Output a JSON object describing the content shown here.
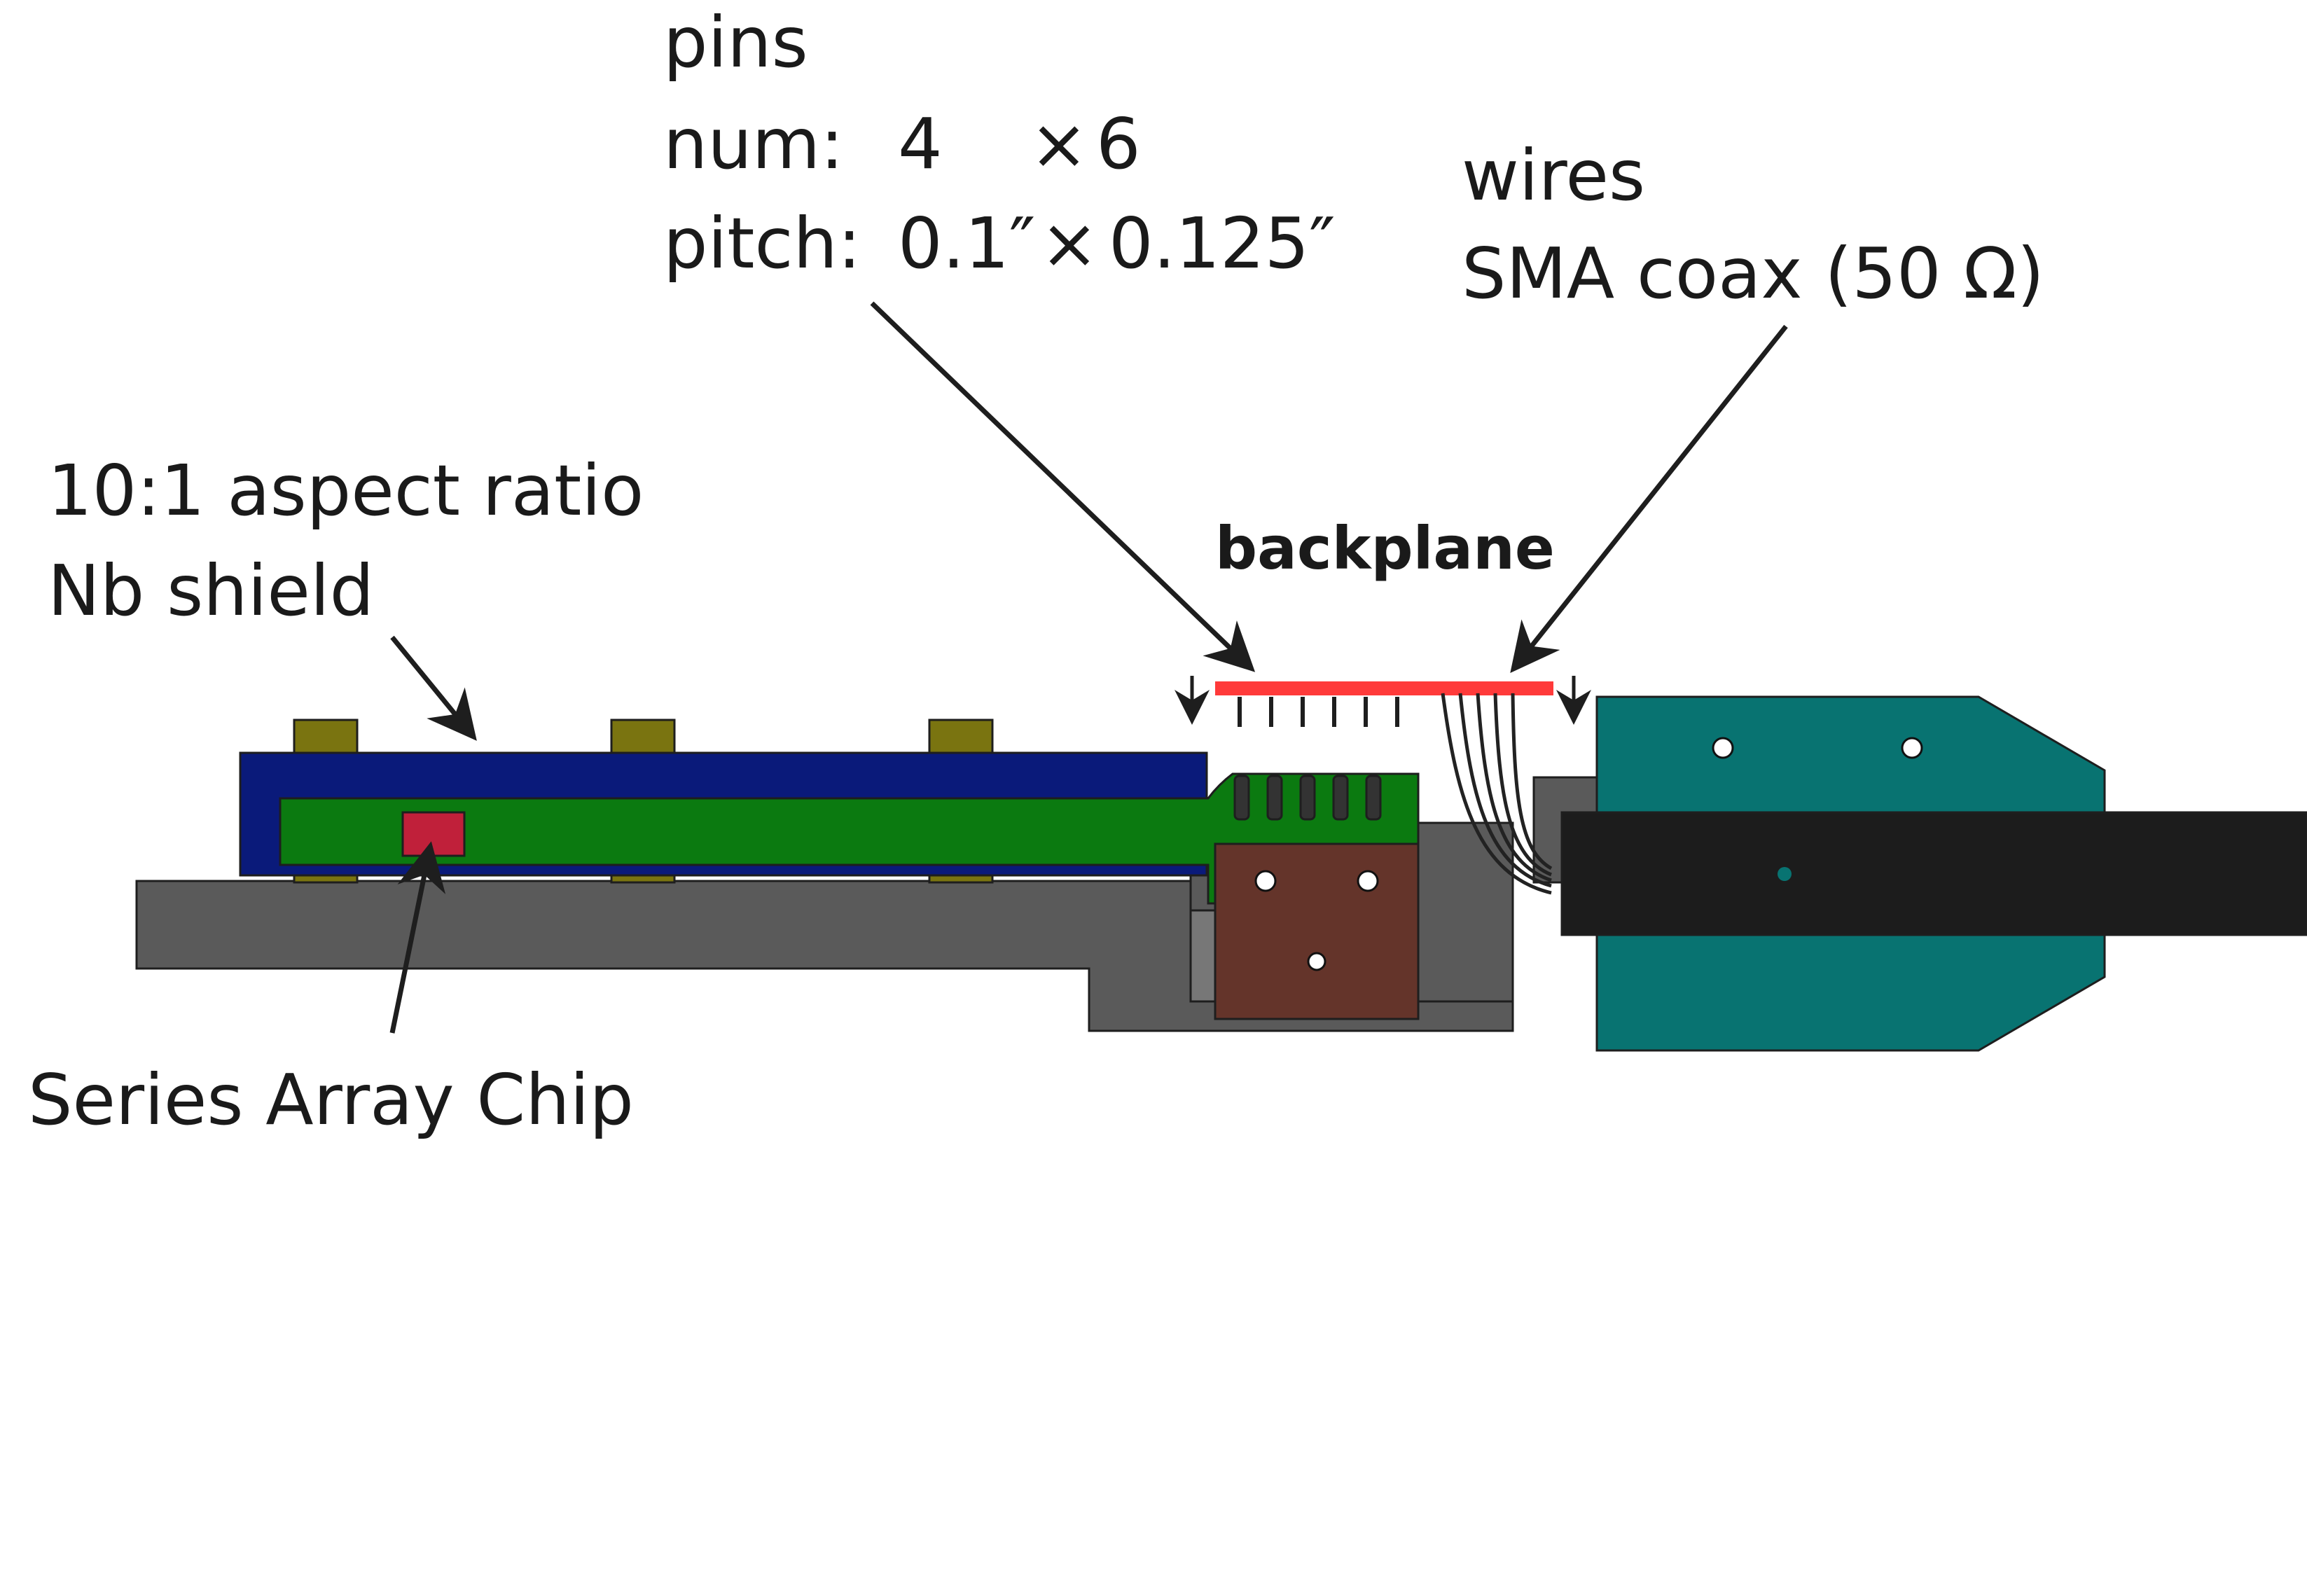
{
  "labels": {
    "pins_title": "pins",
    "pins_num_label": "num:",
    "pins_num_a": "4",
    "pins_num_times": "×",
    "pins_num_b": "6",
    "pins_pitch_label": "pitch:",
    "pins_pitch_a": "0.1″",
    "pins_pitch_times": "×",
    "pins_pitch_b": "0.125″",
    "wires_title": "wires",
    "wires_type": "SMA coax (50 Ω)",
    "shield_line1": "10:1 aspect ratio",
    "shield_line2": "Nb shield",
    "backplane": "backplane",
    "chip": "Series Array Chip"
  },
  "colors": {
    "base_gray": "#5a5a5a",
    "shield_blue": "#0a1a7a",
    "board_green": "#0b7a10",
    "chip_red": "#c0203a",
    "brass": "#7a7410",
    "connector_brown": "#64342a",
    "teal_block": "#087371",
    "cable_black": "#1c1c1c",
    "backplane_red": "#ff3a3a"
  }
}
